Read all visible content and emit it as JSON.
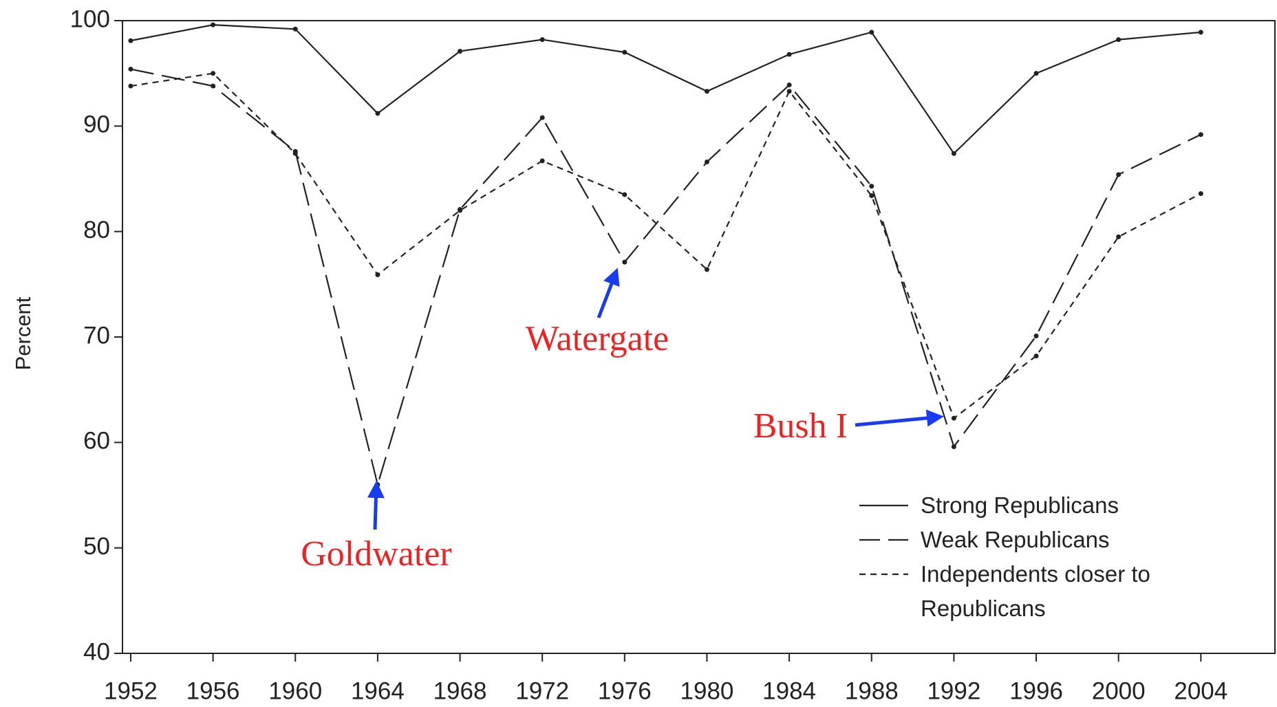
{
  "chart_data": {
    "type": "line",
    "y_label": "Percent",
    "x": [
      1952,
      1956,
      1960,
      1964,
      1968,
      1972,
      1976,
      1980,
      1984,
      1988,
      1992,
      1996,
      2000,
      2004
    ],
    "xlim": [
      1951.6,
      2007.6
    ],
    "xticks": [
      1952,
      1956,
      1960,
      1964,
      1968,
      1972,
      1976,
      1980,
      1984,
      1988,
      1992,
      1996,
      2000,
      2004
    ],
    "ylim": [
      40,
      100
    ],
    "yticks": [
      40,
      50,
      60,
      70,
      80,
      90,
      100
    ],
    "legend": "lower right",
    "series": [
      {
        "name": "Strong Republicans",
        "color": "#222222",
        "values": [
          98.1,
          99.6,
          99.2,
          91.2,
          97.1,
          98.2,
          97.0,
          93.3,
          96.8,
          98.9,
          87.4,
          95.0,
          98.2,
          98.9
        ]
      },
      {
        "name": "Weak Republicans",
        "color": "#222222",
        "values": [
          95.4,
          93.8,
          87.6,
          56.0,
          82.1,
          90.8,
          77.1,
          86.6,
          93.9,
          84.3,
          59.6,
          70.1,
          85.4,
          89.2
        ]
      },
      {
        "name": "Independents closer to Republicans",
        "color": "#222222",
        "values": [
          93.8,
          95.0,
          87.4,
          75.9,
          82.0,
          86.7,
          83.5,
          76.4,
          93.3,
          83.4,
          62.3,
          68.2,
          79.5,
          83.6
        ]
      }
    ],
    "annotations": [
      {
        "text": "Goldwater"
      },
      {
        "text": "Watergate"
      },
      {
        "text": "Bush I"
      }
    ]
  }
}
